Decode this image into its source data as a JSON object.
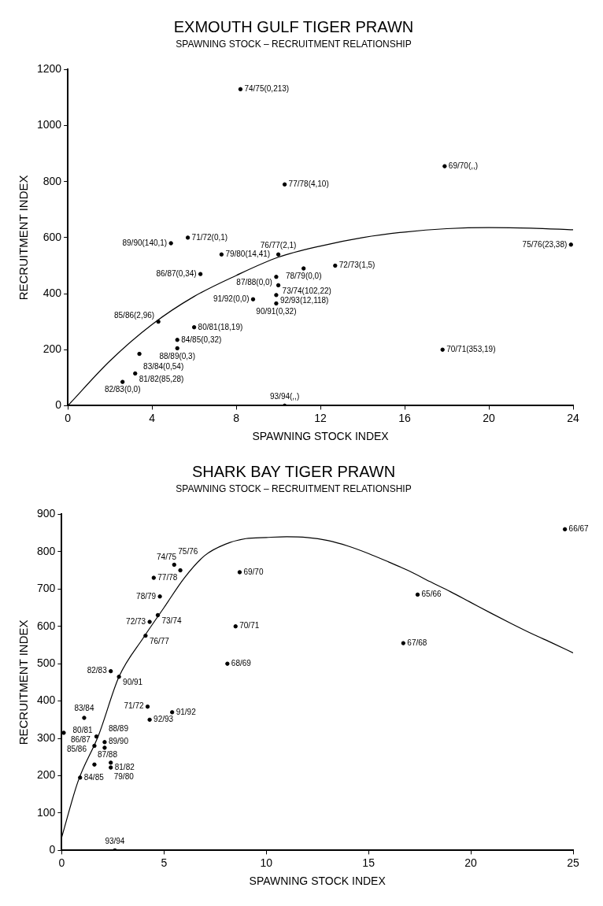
{
  "chart_data": [
    {
      "type": "scatter",
      "title": "EXMOUTH GULF TIGER PRAWN",
      "subtitle": "SPAWNING STOCK – RECRUITMENT RELATIONSHIP",
      "xlabel": "SPAWNING STOCK INDEX",
      "ylabel": "RECRUITMENT INDEX",
      "xlim": [
        0,
        24
      ],
      "xticks": [
        0,
        4,
        8,
        12,
        16,
        20,
        24
      ],
      "ylim": [
        0,
        1200
      ],
      "yticks": [
        0,
        200,
        400,
        600,
        800,
        1000,
        1200
      ],
      "grid": false,
      "legend": false,
      "series": [
        {
          "color": "#000000",
          "marker": "circle",
          "x": [
            8.2,
            10.3,
            17.9,
            5.7,
            4.9,
            7.3,
            10.0,
            11.2,
            12.7,
            23.9,
            6.3,
            9.9,
            10.0,
            9.9,
            8.8,
            9.9,
            4.3,
            6.0,
            5.2,
            5.2,
            3.4,
            17.8,
            3.2,
            2.6,
            10.3
          ],
          "values": [
            1130,
            790,
            855,
            600,
            580,
            540,
            540,
            490,
            500,
            575,
            470,
            460,
            430,
            395,
            380,
            365,
            300,
            280,
            235,
            205,
            185,
            200,
            115,
            85,
            0
          ],
          "value_labels": [
            "74/75(0,213)",
            "77/78(4,10)",
            "69/70(,,)",
            "71/72(0,1)",
            "89/90(140,1)",
            "79/80(14,41)",
            "76/77(2,1)",
            "78/79(0,0)",
            "72/73(1,5)",
            "75/76(23,38)",
            "86/87(0,34)",
            "87/88(0,0)",
            "73/74(102,22)",
            "92/93(12,118)",
            "91/92(0,0)",
            "90/91(0,32)",
            "85/86(2,96)",
            "80/81(18,19)",
            "84/85(0,32)",
            "88/89(0,3)",
            "83/84(0,54)",
            "70/71(353,19)",
            "81/82(85,28)",
            "82/83(0,0)",
            "93/94(,,)"
          ]
        },
        {
          "type": "line",
          "color": "#000000",
          "x": [
            0,
            2,
            4,
            6,
            8,
            10,
            12,
            14,
            16,
            18,
            20,
            22,
            24
          ],
          "values": [
            0,
            160,
            290,
            390,
            465,
            530,
            570,
            600,
            620,
            632,
            636,
            634,
            628
          ]
        }
      ]
    },
    {
      "type": "scatter",
      "title": "SHARK BAY TIGER PRAWN",
      "subtitle": "SPAWNING STOCK – RECRUITMENT RELATIONSHIP",
      "xlabel": "SPAWNING STOCK INDEX",
      "ylabel": "RECRUITMENT INDEX",
      "xlim": [
        0,
        25
      ],
      "xticks": [
        0,
        5,
        10,
        15,
        20,
        25
      ],
      "ylim": [
        0,
        900
      ],
      "yticks": [
        0,
        100,
        200,
        300,
        400,
        500,
        600,
        700,
        800,
        900
      ],
      "grid": false,
      "legend": false,
      "series": [
        {
          "color": "#000000",
          "marker": "circle",
          "x": [
            24.6,
            5.5,
            5.8,
            8.7,
            4.5,
            4.8,
            17.4,
            4.7,
            4.3,
            8.5,
            4.1,
            16.7,
            8.1,
            2.4,
            2.8,
            4.2,
            5.4,
            1.1,
            4.3,
            0.1,
            1.7,
            2.1,
            1.6,
            2.1,
            2.4,
            1.6,
            2.4,
            0.9,
            2.6
          ],
          "values": [
            860,
            765,
            750,
            745,
            730,
            680,
            685,
            630,
            612,
            600,
            575,
            555,
            500,
            480,
            465,
            385,
            370,
            355,
            350,
            315,
            305,
            290,
            280,
            275,
            235,
            230,
            222,
            195,
            0
          ],
          "value_labels": [
            "66/67",
            "75/76",
            "74/75",
            "69/70",
            "77/78",
            "78/79",
            "65/66",
            "73/74",
            "72/73",
            "70/71",
            "76/77",
            "67/68",
            "68/69",
            "82/83",
            "90/91",
            "71/72",
            "91/92",
            "83/84",
            "92/93",
            "85/86",
            "80/81",
            "88/89",
            "86/87",
            "89/90",
            "79/80",
            "87/88",
            "81/82",
            "84/85",
            "93/94"
          ]
        },
        {
          "type": "line",
          "color": "#000000",
          "x": [
            0,
            0.8,
            1.8,
            2.8,
            4,
            5,
            6,
            7,
            8,
            9,
            10,
            11,
            12,
            13,
            14,
            15,
            16,
            17,
            18,
            19,
            20,
            21,
            22,
            23,
            24,
            25
          ],
          "values": [
            35,
            185,
            308,
            465,
            570,
            650,
            730,
            790,
            820,
            835,
            838,
            840,
            838,
            830,
            815,
            795,
            772,
            748,
            720,
            693,
            664,
            635,
            607,
            580,
            555,
            529
          ]
        }
      ]
    }
  ]
}
